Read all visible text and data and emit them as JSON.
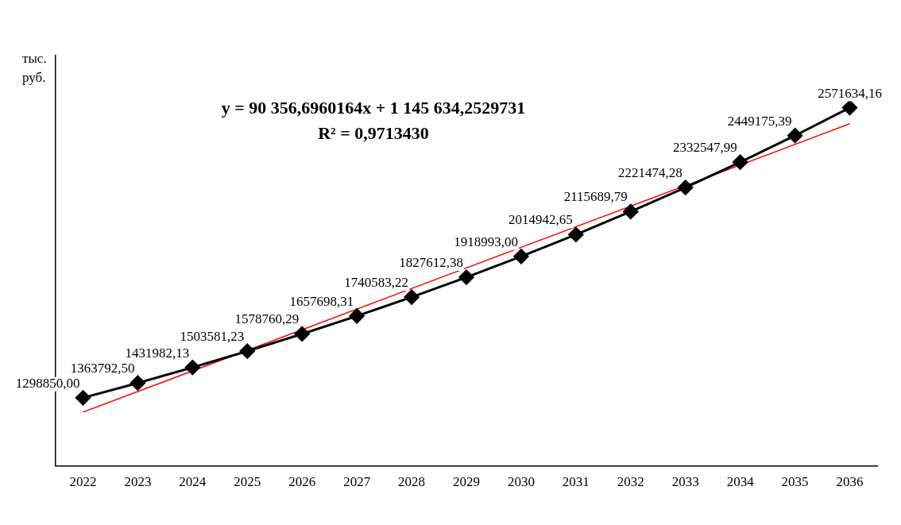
{
  "chart_data": {
    "type": "line",
    "ylabel": "тыс. руб.",
    "categories": [
      "2022",
      "2023",
      "2024",
      "2025",
      "2026",
      "2027",
      "2028",
      "2029",
      "2030",
      "2031",
      "2032",
      "2033",
      "2034",
      "2035",
      "2036"
    ],
    "series": [
      {
        "color": "#000000",
        "marker": "diamond",
        "values": [
          1298850.0,
          1363792.5,
          1431982.13,
          1503581.23,
          1578760.29,
          1657698.31,
          1740583.22,
          1827612.38,
          1918993.0,
          2014942.65,
          2115689.79,
          2221474.28,
          2332547.99,
          2449175.39,
          2571634.16
        ],
        "value_labels": [
          "1298850,00",
          "1363792,50",
          "1431982,13",
          "1503581,23",
          "1578760,29",
          "1657698,31",
          "1740583,22",
          "1827612,38",
          "1918993,00",
          "2014942,65",
          "2115689,79",
          "2221474,28",
          "2332547,99",
          "2449175,39",
          "2571634,16"
        ]
      },
      {
        "type": "line",
        "color": "#ff0000",
        "marker": "none",
        "values": [
          1236000,
          null,
          null,
          null,
          null,
          null,
          null,
          null,
          null,
          null,
          null,
          null,
          null,
          null,
          2501000
        ]
      }
    ],
    "annotations": [
      "y = 90 356,6960164x + 1 145 634,2529731",
      "R² = 0,9713430"
    ],
    "tick_labels": "x",
    "grid": false,
    "legend": false
  }
}
